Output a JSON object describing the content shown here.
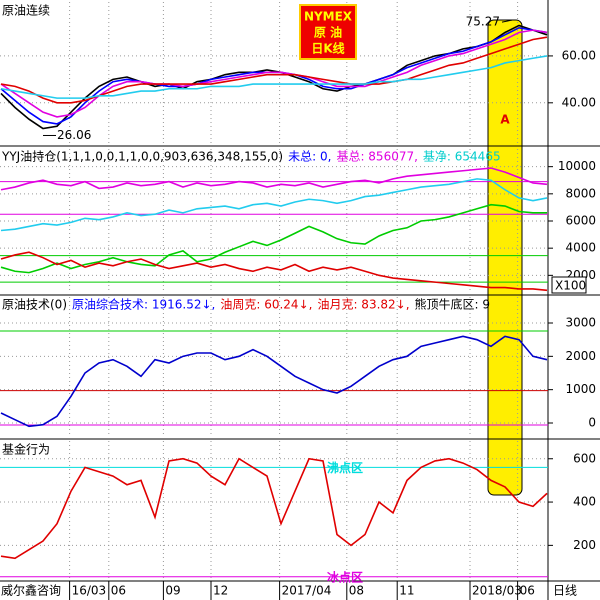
{
  "chart_data": [
    {
      "type": "line",
      "title": "原油连续",
      "ylim": [
        22,
        83
      ],
      "yticks": [
        {
          "value": 40,
          "label": "40.00"
        },
        {
          "value": 60,
          "label": "60.00"
        }
      ],
      "high": 75.27,
      "low": 26.06,
      "band_label": "A",
      "badge": [
        "NYMEX",
        "原  油",
        "日K线"
      ],
      "series": [
        {
          "name": "price",
          "color": "#000000",
          "values": [
            44,
            38,
            33,
            29,
            30,
            36,
            42,
            47,
            50,
            51,
            49,
            47,
            48,
            46,
            49,
            50,
            52,
            53,
            53,
            54,
            53,
            51,
            49,
            46,
            45,
            47,
            48,
            50,
            52,
            56,
            58,
            60,
            61,
            63,
            64,
            66,
            70,
            73,
            71,
            69
          ]
        },
        {
          "name": "ma-fast",
          "color": "#0000ff",
          "values": [
            46,
            41,
            36,
            32,
            31,
            34,
            40,
            45,
            49,
            50,
            49,
            48,
            47,
            47,
            48,
            50,
            51,
            52,
            53,
            53,
            53,
            52,
            50,
            47,
            46,
            46,
            48,
            50,
            52,
            55,
            57,
            59,
            61,
            62,
            64,
            66,
            69,
            72,
            71,
            70
          ]
        },
        {
          "name": "ma-mid",
          "color": "#e000e0",
          "values": [
            48,
            44,
            40,
            36,
            34,
            35,
            38,
            43,
            47,
            49,
            49,
            48,
            48,
            47,
            48,
            49,
            50,
            51,
            52,
            53,
            53,
            52,
            51,
            49,
            47,
            47,
            47,
            49,
            51,
            53,
            56,
            58,
            60,
            61,
            63,
            65,
            67,
            70,
            71,
            70
          ]
        },
        {
          "name": "ma-slow",
          "color": "#e00000",
          "values": [
            48,
            47,
            45,
            42,
            40,
            40,
            41,
            43,
            45,
            47,
            48,
            48,
            48,
            48,
            48,
            48,
            49,
            50,
            51,
            52,
            52,
            52,
            51,
            50,
            49,
            48,
            48,
            48,
            49,
            50,
            52,
            54,
            56,
            57,
            59,
            61,
            63,
            65,
            67,
            68
          ]
        },
        {
          "name": "ma-long",
          "color": "#22ccee",
          "values": [
            46,
            45,
            44,
            43,
            42,
            42,
            42,
            43,
            43,
            44,
            45,
            45,
            46,
            46,
            46,
            47,
            47,
            47,
            48,
            48,
            48,
            48,
            48,
            48,
            48,
            48,
            48,
            49,
            49,
            50,
            50,
            51,
            52,
            53,
            54,
            55,
            57,
            58,
            59,
            60
          ]
        }
      ]
    },
    {
      "type": "line",
      "legend": [
        {
          "text": "YYJ油持仓(1,1,1,0,0,1,1,0,0,903,636,348,155,0)",
          "color": "#000000"
        },
        {
          "text": "未总: 0,",
          "color": "#0000ff"
        },
        {
          "text": "基总: 856077,",
          "color": "#e000e0"
        },
        {
          "text": "基净: 654465",
          "color": "#00cccc"
        }
      ],
      "unit_label": "X100",
      "ylim": [
        700,
        11300
      ],
      "yticks": [
        2000,
        4000,
        6000,
        8000,
        10000
      ],
      "levels": [
        {
          "value": 8900,
          "color": "#e000e0"
        },
        {
          "value": 6500,
          "color": "#e000e0"
        },
        {
          "value": 3450,
          "color": "#00cc00"
        },
        {
          "value": 1500,
          "color": "#00cc00"
        }
      ],
      "series": [
        {
          "name": "magenta",
          "color": "#e000e0",
          "values": [
            8300,
            8500,
            8800,
            9000,
            8700,
            8600,
            8900,
            8400,
            8500,
            8800,
            8600,
            8700,
            8900,
            8500,
            8800,
            8600,
            8700,
            8900,
            8800,
            8500,
            8700,
            8600,
            8800,
            8500,
            8700,
            8900,
            9000,
            8800,
            9100,
            9300,
            9400,
            9500,
            9600,
            9700,
            9800,
            9900,
            9600,
            9200,
            8800,
            8700
          ]
        },
        {
          "name": "cyan",
          "color": "#22ccee",
          "values": [
            5300,
            5400,
            5600,
            5800,
            5700,
            5900,
            6200,
            6100,
            6300,
            6600,
            6400,
            6500,
            6800,
            6600,
            6900,
            7000,
            7100,
            6900,
            7200,
            7300,
            7100,
            7400,
            7600,
            7500,
            7300,
            7500,
            7800,
            7900,
            8100,
            8300,
            8500,
            8600,
            8700,
            8900,
            9100,
            9000,
            8300,
            7700,
            7500,
            7700
          ]
        },
        {
          "name": "green",
          "color": "#00cc00",
          "values": [
            2600,
            2300,
            2200,
            2500,
            2900,
            2500,
            2800,
            3000,
            3300,
            3000,
            2800,
            2700,
            3500,
            3800,
            3000,
            3200,
            3700,
            4100,
            4500,
            4200,
            4600,
            5100,
            5600,
            5200,
            4700,
            4400,
            4300,
            4900,
            5300,
            5500,
            6000,
            6100,
            6300,
            6600,
            6900,
            7200,
            7100,
            6700,
            6600,
            6600
          ]
        },
        {
          "name": "red",
          "color": "#e00000",
          "values": [
            3200,
            3500,
            3700,
            3300,
            2800,
            3100,
            2600,
            2900,
            2700,
            3000,
            3200,
            2800,
            2500,
            2700,
            2900,
            2600,
            2800,
            2500,
            2300,
            2600,
            2400,
            2800,
            2300,
            2600,
            2400,
            2600,
            2300,
            2000,
            1800,
            1700,
            1600,
            1500,
            1400,
            1300,
            1200,
            1100,
            1100,
            1000,
            1000,
            900
          ]
        }
      ]
    },
    {
      "type": "line",
      "legend": [
        {
          "text": "原油技术(0)",
          "color": "#000000"
        },
        {
          "text": "原油综合技术: 1916.52↓,",
          "color": "#0000ff"
        },
        {
          "text": "油周克: 60.24↓,",
          "color": "#e00000"
        },
        {
          "text": "油月克: 83.82↓,",
          "color": "#e00000"
        },
        {
          "text": "熊顶牛底区: 9",
          "color": "#000000"
        }
      ],
      "ylim": [
        -420,
        3780
      ],
      "yticks": [
        0,
        1000,
        2000,
        3000
      ],
      "levels": [
        {
          "value": 2760,
          "color": "#00cc00"
        },
        {
          "value": 970,
          "color": "#cc0000"
        },
        {
          "value": -60,
          "color": "#e000e0"
        }
      ],
      "series": [
        {
          "name": "tech",
          "color": "#0000cc",
          "values": [
            300,
            100,
            -100,
            -50,
            200,
            800,
            1500,
            1800,
            1900,
            1700,
            1400,
            1900,
            1800,
            2000,
            2100,
            2100,
            1900,
            2000,
            2200,
            2000,
            1700,
            1400,
            1200,
            1000,
            900,
            1100,
            1400,
            1700,
            1900,
            2000,
            2300,
            2400,
            2500,
            2600,
            2500,
            2300,
            2600,
            2500,
            2000,
            1900
          ]
        }
      ]
    },
    {
      "type": "line",
      "title": "基金行为",
      "ylim": [
        40,
        682
      ],
      "yticks": [
        200,
        400,
        600
      ],
      "levels": [
        {
          "value": 560,
          "color": "#00dddd",
          "label": "沸点区"
        },
        {
          "value": 55,
          "color": "#e000e0",
          "label": "冰点区"
        }
      ],
      "series": [
        {
          "name": "fund",
          "color": "#e00000",
          "values": [
            150,
            140,
            180,
            220,
            300,
            450,
            560,
            540,
            520,
            480,
            500,
            330,
            590,
            600,
            580,
            520,
            480,
            600,
            560,
            520,
            300,
            450,
            600,
            590,
            250,
            200,
            250,
            400,
            350,
            500,
            560,
            590,
            600,
            580,
            550,
            500,
            470,
            400,
            380,
            440
          ]
        }
      ],
      "xlim": [
        0,
        39
      ],
      "xticks": [
        {
          "value": 4.9,
          "label": "16/03"
        },
        {
          "value": 7.7,
          "label": "06"
        },
        {
          "value": 11.6,
          "label": "09"
        },
        {
          "value": 15.0,
          "label": "12"
        },
        {
          "value": 19.9,
          "label": "2017/04"
        },
        {
          "value": 24.7,
          "label": "08"
        },
        {
          "value": 28.3,
          "label": "11"
        },
        {
          "value": 33.5,
          "label": "2018/03"
        },
        {
          "value": 36.9,
          "label": "06"
        }
      ],
      "source": "威尔鑫咨询",
      "period": "日线"
    }
  ]
}
